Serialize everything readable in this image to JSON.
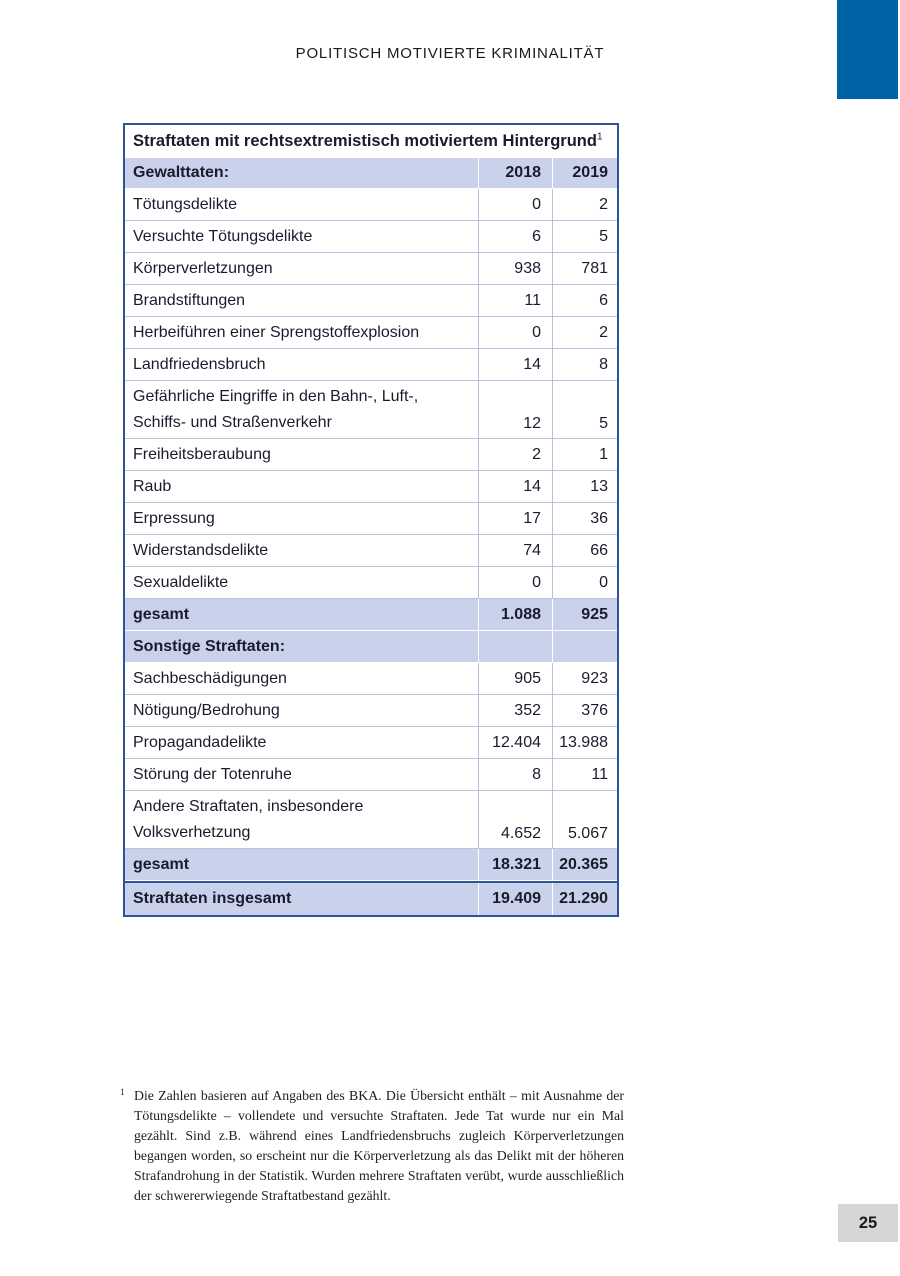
{
  "page": {
    "header_title": "POLITISCH MOTIVIERTE KRIMINALITÄT",
    "page_number": "25"
  },
  "table": {
    "title": "Straftaten mit rechtsextremistisch motiviertem Hintergrund",
    "title_footnote_marker": "1",
    "rows": [
      {
        "label": "Gewalttaten:",
        "v2018": "2018",
        "v2019": "2019"
      },
      {
        "label": "Tötungsdelikte",
        "v2018": "0",
        "v2019": "2"
      },
      {
        "label": "Versuchte Tötungsdelikte",
        "v2018": "6",
        "v2019": "5"
      },
      {
        "label": "Körperverletzungen",
        "v2018": "938",
        "v2019": "781"
      },
      {
        "label": "Brandstiftungen",
        "v2018": "11",
        "v2019": "6"
      },
      {
        "label": "Herbeiführen einer Sprengstoffexplosion",
        "v2018": "0",
        "v2019": "2"
      },
      {
        "label": "Landfriedensbruch",
        "v2018": "14",
        "v2019": "8"
      },
      {
        "label": "Gefährliche Eingriffe in den Bahn-, Luft-,",
        "label2": "Schiffs- und Straßenverkehr",
        "v2018": "12",
        "v2019": "5"
      },
      {
        "label": "Freiheitsberaubung",
        "v2018": "2",
        "v2019": "1"
      },
      {
        "label": "Raub",
        "v2018": "14",
        "v2019": "13"
      },
      {
        "label": "Erpressung",
        "v2018": "17",
        "v2019": "36"
      },
      {
        "label": "Widerstandsdelikte",
        "v2018": "74",
        "v2019": "66"
      },
      {
        "label": "Sexualdelikte",
        "v2018": "0",
        "v2019": "0"
      },
      {
        "label": "gesamt",
        "v2018": "1.088",
        "v2019": "925"
      },
      {
        "label": "Sonstige Straftaten:",
        "v2018": "",
        "v2019": ""
      },
      {
        "label": "Sachbeschädigungen",
        "v2018": "905",
        "v2019": "923"
      },
      {
        "label": "Nötigung/Bedrohung",
        "v2018": "352",
        "v2019": "376"
      },
      {
        "label": "Propagandadelikte",
        "v2018": "12.404",
        "v2019": "13.988"
      },
      {
        "label": "Störung der Totenruhe",
        "v2018": "8",
        "v2019": "11"
      },
      {
        "label": "Andere Straftaten, insbesondere",
        "label2": "Volksverhetzung",
        "v2018": "4.652",
        "v2019": "5.067"
      },
      {
        "label": "gesamt",
        "v2018": "18.321",
        "v2019": "20.365"
      },
      {
        "label": "Straftaten insgesamt",
        "v2018": "19.409",
        "v2019": "21.290"
      }
    ]
  },
  "footnote": {
    "marker": "1",
    "text": "Die Zahlen basieren auf Angaben des BKA. Die Übersicht enthält – mit Ausnahme der Tötungsdelikte – vollendete und versuchte Straftaten. Jede Tat wurde nur ein Mal gezählt. Sind z.B. während eines Landfriedensbruchs zugleich Körperverletzungen begangen worden, so erscheint nur die Körperverletzung als das Delikt mit der höheren Strafandrohung in der Statistik. Wurden mehrere Straftaten verübt, wurde ausschließlich der schwererwiegende Straftatbestand gezählt."
  },
  "colors": {
    "accent_blue": "#0062a7",
    "table_border_blue": "#2d5597",
    "row_shade": "#c9d2ea",
    "divider_light_blue": "#b7c3df",
    "page_number_bg": "#d6d6d6"
  }
}
